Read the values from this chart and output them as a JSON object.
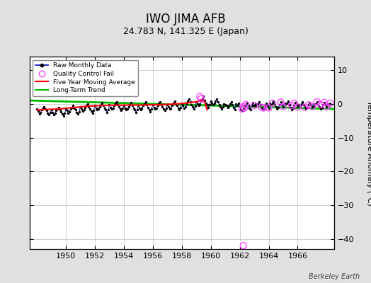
{
  "title": "IWO JIMA AFB",
  "subtitle": "24.783 N, 141.325 E (Japan)",
  "ylabel": "Temperature Anomaly (°C)",
  "watermark": "Berkeley Earth",
  "xlim": [
    1947.5,
    1968.5
  ],
  "ylim": [
    -43,
    14
  ],
  "yticks": [
    10,
    0,
    -10,
    -20,
    -30,
    -40
  ],
  "xticks": [
    1950,
    1952,
    1954,
    1956,
    1958,
    1960,
    1962,
    1964,
    1966
  ],
  "bg_color": "#e0e0e0",
  "plot_bg_color": "#ffffff",
  "grid_color": "#c8c8c8",
  "raw_line_color": "#0000cc",
  "raw_dot_color": "#000000",
  "qc_fail_color": "#ff44ff",
  "moving_avg_color": "#ff0000",
  "trend_color": "#00bb00",
  "title_fontsize": 12,
  "subtitle_fontsize": 9,
  "tick_fontsize": 8,
  "ylabel_fontsize": 8,
  "raw_data": {
    "x": [
      1948.0,
      1948.083,
      1948.167,
      1948.25,
      1948.333,
      1948.417,
      1948.5,
      1948.583,
      1948.667,
      1948.75,
      1948.833,
      1948.917,
      1949.0,
      1949.083,
      1949.167,
      1949.25,
      1949.333,
      1949.417,
      1949.5,
      1949.583,
      1949.667,
      1949.75,
      1949.833,
      1949.917,
      1950.0,
      1950.083,
      1950.167,
      1950.25,
      1950.333,
      1950.417,
      1950.5,
      1950.583,
      1950.667,
      1950.75,
      1950.833,
      1950.917,
      1951.0,
      1951.083,
      1951.167,
      1951.25,
      1951.333,
      1951.417,
      1951.5,
      1951.583,
      1951.667,
      1951.75,
      1951.833,
      1951.917,
      1952.0,
      1952.083,
      1952.167,
      1952.25,
      1952.333,
      1952.417,
      1952.5,
      1952.583,
      1952.667,
      1952.75,
      1952.833,
      1952.917,
      1953.0,
      1953.083,
      1953.167,
      1953.25,
      1953.333,
      1953.417,
      1953.5,
      1953.583,
      1953.667,
      1953.75,
      1953.833,
      1953.917,
      1954.0,
      1954.083,
      1954.167,
      1954.25,
      1954.333,
      1954.417,
      1954.5,
      1954.583,
      1954.667,
      1954.75,
      1954.833,
      1954.917,
      1955.0,
      1955.083,
      1955.167,
      1955.25,
      1955.333,
      1955.417,
      1955.5,
      1955.583,
      1955.667,
      1955.75,
      1955.833,
      1955.917,
      1956.0,
      1956.083,
      1956.167,
      1956.25,
      1956.333,
      1956.417,
      1956.5,
      1956.583,
      1956.667,
      1956.75,
      1956.833,
      1956.917,
      1957.0,
      1957.083,
      1957.167,
      1957.25,
      1957.333,
      1957.417,
      1957.5,
      1957.583,
      1957.667,
      1957.75,
      1957.833,
      1957.917,
      1958.0,
      1958.083,
      1958.167,
      1958.25,
      1958.333,
      1958.417,
      1958.5,
      1958.583,
      1958.667,
      1958.75,
      1958.833,
      1958.917,
      1959.0,
      1959.083,
      1959.167,
      1959.25,
      1959.333,
      1959.417,
      1959.5,
      1959.583,
      1959.667,
      1959.75,
      1959.833,
      1959.917,
      1960.0,
      1960.083,
      1960.167,
      1960.25,
      1960.333,
      1960.417,
      1960.5,
      1960.583,
      1960.667,
      1960.75,
      1960.833,
      1960.917,
      1961.0,
      1961.083,
      1961.167,
      1961.25,
      1961.333,
      1961.417,
      1961.5,
      1961.583,
      1961.667,
      1961.75,
      1961.833,
      1961.917,
      1962.0,
      1962.083,
      1962.167,
      1962.25,
      1962.333,
      1962.417,
      1962.5,
      1962.583,
      1962.667,
      1962.75,
      1962.833,
      1962.917,
      1963.0,
      1963.083,
      1963.167,
      1963.25,
      1963.333,
      1963.417,
      1963.5,
      1963.583,
      1963.667,
      1963.75,
      1963.833,
      1963.917,
      1964.0,
      1964.083,
      1964.167,
      1964.25,
      1964.333,
      1964.417,
      1964.5,
      1964.583,
      1964.667,
      1964.75,
      1964.833,
      1964.917,
      1965.0,
      1965.083,
      1965.167,
      1965.25,
      1965.333,
      1965.417,
      1965.5,
      1965.583,
      1965.667,
      1965.75,
      1965.833,
      1965.917,
      1966.0,
      1966.083,
      1966.167,
      1966.25,
      1966.333,
      1966.417,
      1966.5,
      1966.583,
      1966.667,
      1966.75,
      1966.833,
      1966.917,
      1967.0,
      1967.083,
      1967.167,
      1967.25,
      1967.333,
      1967.417,
      1967.5,
      1967.583,
      1967.667,
      1967.75,
      1967.833,
      1967.917,
      1968.0,
      1968.083,
      1968.167,
      1968.25
    ],
    "y": [
      -1.5,
      -2.2,
      -3.0,
      -2.5,
      -1.8,
      -1.2,
      -0.8,
      -1.5,
      -2.0,
      -2.8,
      -3.2,
      -2.5,
      -1.8,
      -2.5,
      -3.2,
      -2.8,
      -2.0,
      -1.5,
      -1.0,
      -1.8,
      -2.3,
      -3.0,
      -3.5,
      -2.8,
      -1.5,
      -2.0,
      -2.8,
      -2.3,
      -1.5,
      -1.0,
      -0.5,
      -1.2,
      -1.8,
      -2.5,
      -3.0,
      -2.3,
      -0.8,
      -1.5,
      -2.2,
      -1.8,
      -1.0,
      -0.5,
      0.0,
      -0.8,
      -1.5,
      -2.2,
      -2.8,
      -2.0,
      -0.5,
      -1.2,
      -1.8,
      -1.5,
      -0.8,
      -0.2,
      0.3,
      -0.5,
      -1.2,
      -1.8,
      -2.5,
      -1.8,
      -0.3,
      -1.0,
      -1.5,
      -1.2,
      -0.5,
      0.1,
      0.6,
      -0.2,
      -0.8,
      -1.5,
      -2.0,
      -1.3,
      -0.5,
      -1.2,
      -1.8,
      -1.5,
      -0.8,
      -0.2,
      0.3,
      -0.5,
      -1.2,
      -1.8,
      -2.5,
      -1.8,
      -0.5,
      -1.2,
      -1.8,
      -1.3,
      -0.5,
      0.0,
      0.5,
      -0.3,
      -1.0,
      -1.7,
      -2.3,
      -1.5,
      -0.3,
      -1.0,
      -1.6,
      -1.3,
      -0.5,
      0.1,
      0.6,
      -0.2,
      -0.8,
      -1.5,
      -2.0,
      -1.3,
      -0.2,
      -0.8,
      -1.5,
      -1.2,
      -0.4,
      0.2,
      0.7,
      0.0,
      -0.5,
      -1.2,
      -1.8,
      -1.0,
      0.2,
      -0.5,
      -1.2,
      -0.8,
      0.0,
      0.8,
      1.5,
      0.5,
      -0.2,
      -0.8,
      -1.5,
      -0.7,
      0.5,
      0.0,
      -0.5,
      0.0,
      0.8,
      1.5,
      2.2,
      1.0,
      0.2,
      -0.3,
      -1.0,
      -0.2,
      0.8,
      0.2,
      -0.3,
      0.2,
      0.9,
      1.5,
      0.5,
      -0.2,
      -0.9,
      -1.5,
      -0.8,
      0.0,
      -0.3,
      -0.5,
      -1.0,
      -0.7,
      0.0,
      0.5,
      -0.3,
      -1.0,
      -1.7,
      0.0,
      -0.5,
      0.2,
      -0.8,
      -1.5,
      -2.0,
      -1.5,
      -0.8,
      -0.2,
      0.3,
      -0.5,
      -1.2,
      -1.8,
      -0.5,
      0.3,
      -0.5,
      0.0,
      -0.5,
      0.0,
      0.5,
      -0.3,
      -1.0,
      -1.7,
      -1.2,
      -0.5,
      0.2,
      -0.5,
      -1.2,
      0.2,
      -0.3,
      0.2,
      0.8,
      -0.2,
      -0.8,
      -1.5,
      -1.0,
      -0.3,
      0.5,
      -0.2,
      -0.8,
      0.2,
      -0.3,
      0.2,
      0.8,
      -0.3,
      -1.0,
      -1.7,
      -1.2,
      -0.5,
      0.3,
      -0.3,
      -0.9,
      -0.2,
      -0.7,
      0.0,
      0.6,
      -0.2,
      -0.9,
      -1.5,
      -1.0,
      -0.3,
      0.4,
      -0.2,
      -0.8,
      -0.1,
      -0.6,
      0.0,
      0.6,
      -0.2,
      -0.8,
      -1.5,
      -1.0,
      -0.3,
      0.4,
      -0.2,
      -0.8,
      -0.1,
      -0.6,
      0.2
    ]
  },
  "qc_fail_points": {
    "x": [
      1959.25,
      1959.333,
      1962.167,
      1962.25,
      1962.333,
      1962.417,
      1963.0,
      1963.5,
      1963.667,
      1964.0,
      1964.25,
      1964.833,
      1965.0,
      1965.583,
      1965.75,
      1966.0,
      1966.5,
      1966.75,
      1967.0,
      1967.333,
      1967.583,
      1967.833,
      1968.0,
      1968.25
    ],
    "y": [
      2.2,
      1.5,
      -1.5,
      -0.8,
      -1.2,
      -0.2,
      -0.5,
      -1.0,
      -1.2,
      -1.2,
      0.2,
      0.5,
      -0.8,
      -0.5,
      0.2,
      -0.9,
      -1.0,
      -0.3,
      -0.8,
      0.6,
      -0.2,
      0.4,
      -0.8,
      0.2
    ],
    "outlier_x": [
      1962.25
    ],
    "outlier_y": [
      -42.0
    ]
  },
  "moving_avg": {
    "x": [
      1948.0,
      1948.5,
      1949.0,
      1949.5,
      1950.0,
      1950.5,
      1951.0,
      1951.5,
      1952.0,
      1952.5,
      1953.0,
      1953.5,
      1954.0,
      1954.5,
      1955.0,
      1955.5,
      1956.0,
      1956.5,
      1957.0,
      1957.5,
      1958.0,
      1958.5,
      1959.0,
      1959.25,
      1959.417,
      1959.583,
      1959.75
    ],
    "y": [
      -1.8,
      -1.7,
      -1.6,
      -1.5,
      -1.3,
      -1.1,
      -0.9,
      -0.7,
      -0.6,
      -0.5,
      -0.45,
      -0.4,
      -0.38,
      -0.35,
      -0.35,
      -0.32,
      -0.28,
      -0.22,
      -0.15,
      -0.05,
      0.1,
      0.35,
      0.6,
      0.9,
      1.2,
      0.5,
      -1.8
    ]
  },
  "trend": {
    "x": [
      1947.5,
      1968.5
    ],
    "y": [
      1.0,
      -1.5
    ]
  }
}
